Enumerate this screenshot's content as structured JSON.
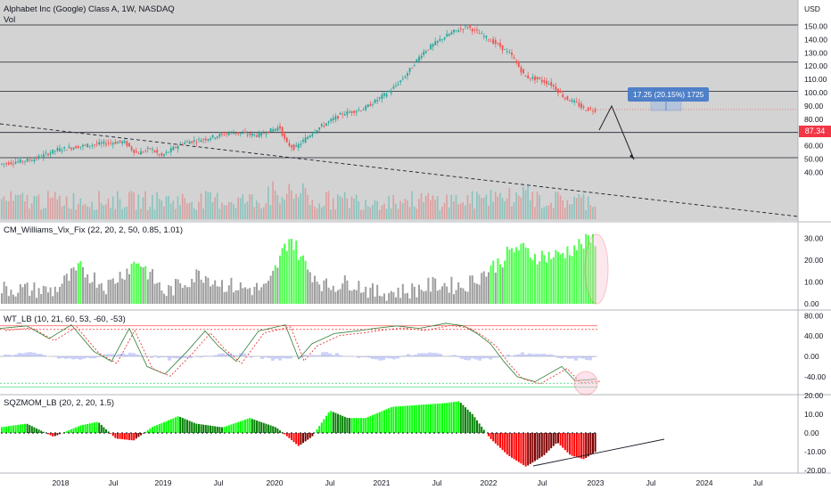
{
  "price_pane": {
    "title": "Alphabet Inc (Google) Class A, 1W, NASDAQ",
    "volume_label": "Vol",
    "currency": "USD",
    "last_price": "87.34",
    "y_ticks": [
      "150.00",
      "140.00",
      "130.00",
      "120.00",
      "110.00",
      "100.00",
      "90.00",
      "80.00",
      "70.00",
      "60.00",
      "50.00",
      "40.00"
    ],
    "measure_label": "17.25 (20.15%) 1725"
  },
  "vix_pane": {
    "title": "CM_Williams_Vix_Fix (22, 20, 2, 50, 0.85, 1.01)",
    "y_ticks": [
      "30.00",
      "20.00",
      "10.00",
      "0.00"
    ]
  },
  "wt_pane": {
    "title": "WT_LB (10, 21, 60, 53, -60, -53)",
    "y_ticks": [
      "80.00",
      "40.00",
      "0.00",
      "-40.00"
    ]
  },
  "sqz_pane": {
    "title": "SQZMOM_LB (20, 2, 20, 1.5)",
    "y_ticks": [
      "20.00",
      "10.00",
      "0.00",
      "-10.00",
      "-20.00"
    ]
  },
  "x_axis": {
    "ticks": [
      "2018",
      "Jul",
      "2019",
      "Jul",
      "2020",
      "Jul",
      "2021",
      "Jul",
      "2022",
      "Jul",
      "2023",
      "Jul",
      "2024",
      "Jul"
    ]
  },
  "colors": {
    "up": "#26a69a",
    "down": "#ef5350",
    "pane_bg": "#d3d3d3",
    "vix_high": "#4cff4c",
    "vix_low": "#9e9e9e",
    "sqz_pos_strong": "#00ff00",
    "sqz_pos_weak": "#008000",
    "sqz_neg_strong": "#ff0000",
    "sqz_neg_weak": "#800000",
    "last_price_bg": "#f23645",
    "measure_label_bg": "#4f80c8"
  }
}
